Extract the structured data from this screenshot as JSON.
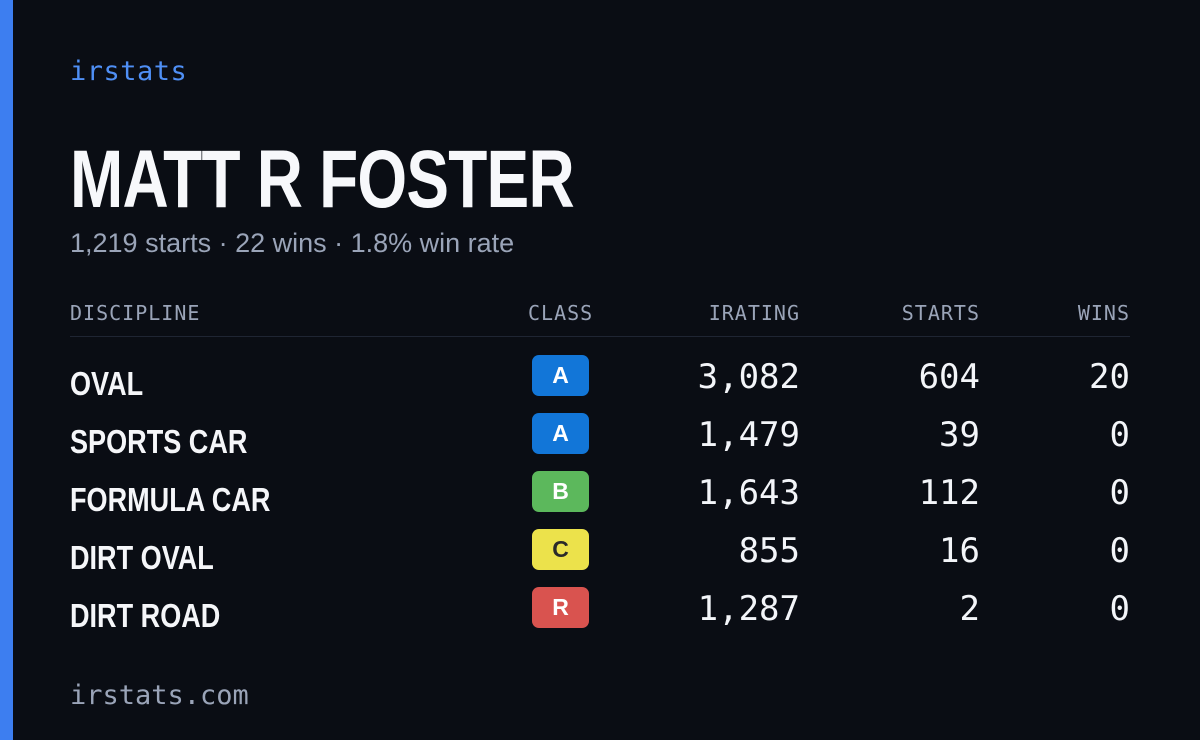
{
  "brand": "irstats",
  "accent_color": "#3d7ef0",
  "player": {
    "name": "MATT R FOSTER",
    "summary": "1,219 starts · 22 wins · 1.8% win rate"
  },
  "table": {
    "headers": {
      "discipline": "DISCIPLINE",
      "class": "CLASS",
      "irating": "IRATING",
      "starts": "STARTS",
      "wins": "WINS"
    },
    "rows": [
      {
        "discipline": "OVAL",
        "class": "A",
        "class_bg": "#1276d8",
        "class_fg": "#ffffff",
        "irating": "3,082",
        "starts": "604",
        "wins": "20"
      },
      {
        "discipline": "SPORTS CAR",
        "class": "A",
        "class_bg": "#1276d8",
        "class_fg": "#ffffff",
        "irating": "1,479",
        "starts": "39",
        "wins": "0"
      },
      {
        "discipline": "FORMULA CAR",
        "class": "B",
        "class_bg": "#5cb85c",
        "class_fg": "#ffffff",
        "irating": "1,643",
        "starts": "112",
        "wins": "0"
      },
      {
        "discipline": "DIRT OVAL",
        "class": "C",
        "class_bg": "#ece24b",
        "class_fg": "#2a2a2a",
        "irating": "855",
        "starts": "16",
        "wins": "0"
      },
      {
        "discipline": "DIRT ROAD",
        "class": "R",
        "class_bg": "#d9534f",
        "class_fg": "#ffffff",
        "irating": "1,287",
        "starts": "2",
        "wins": "0"
      }
    ]
  },
  "footer": "irstats.com"
}
